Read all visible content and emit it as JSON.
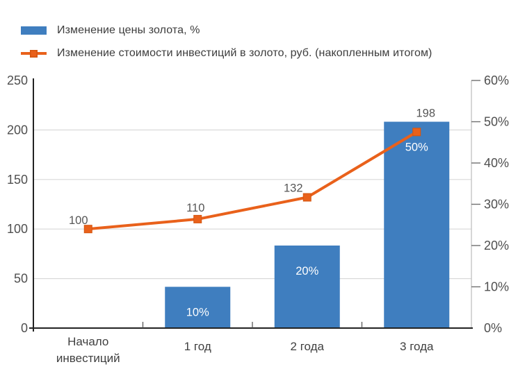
{
  "colors": {
    "bar": "#3F7EBF",
    "line": "#E9611B",
    "line_marker_edge": "#D4550F",
    "grid": "#D9D9D9",
    "axis_dark": "#222222",
    "axis_light": "#C0C0C0",
    "tick_label": "#4F4F4F",
    "category_label": "#3F3F3F",
    "data_label": "#565656",
    "bar_label": "#FFFFFF"
  },
  "chart_data": {
    "type": "combo",
    "title": "",
    "categories": [
      "Начало инвестиций",
      "1 год",
      "2 года",
      "3 года"
    ],
    "series": [
      {
        "name": "Изменение цены золота, %",
        "type": "bar",
        "axis": "right",
        "values": [
          null,
          10,
          20,
          50
        ],
        "point_labels": [
          "",
          "10%",
          "20%",
          "50%"
        ]
      },
      {
        "name": "Изменение стоимости инвестиций в золото, руб. (накопленным итогом)",
        "type": "line",
        "axis": "left",
        "values": [
          100,
          110,
          132,
          198
        ],
        "point_labels": [
          "100",
          "110",
          "132",
          "198"
        ]
      }
    ],
    "left_axis": {
      "min": 0,
      "max": 250,
      "step": 50,
      "tick_labels": [
        "0",
        "50",
        "100",
        "150",
        "200",
        "250"
      ]
    },
    "right_axis": {
      "min": 0,
      "max": 60,
      "step": 10,
      "tick_labels": [
        "0%",
        "10%",
        "20%",
        "30%",
        "40%",
        "50%",
        "60%"
      ]
    },
    "grid": true,
    "legend_position": "top-left"
  }
}
